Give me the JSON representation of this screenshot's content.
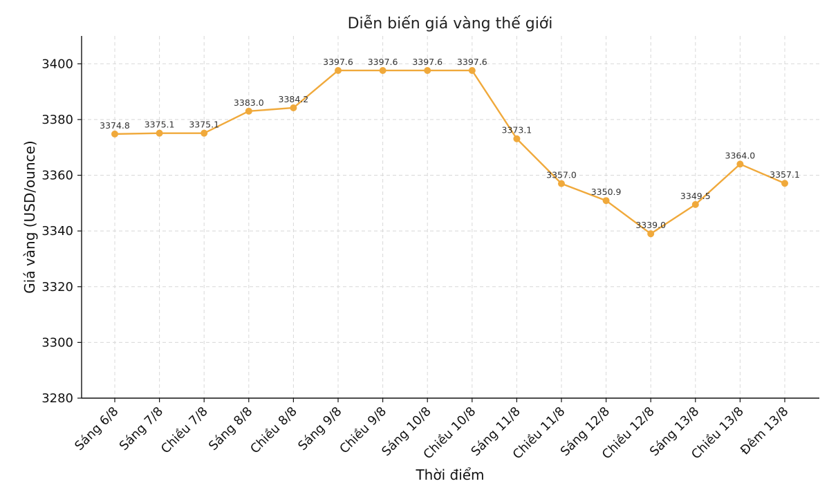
{
  "chart_data": {
    "type": "line",
    "title": "Diễn biến giá vàng thế giới",
    "xlabel": "Thời điểm",
    "ylabel": "Giá vàng (USD/ounce)",
    "categories": [
      "Sáng 6/8",
      "Sáng 7/8",
      "Chiều 7/8",
      "Sáng 8/8",
      "Chiều 8/8",
      "Sáng 9/8",
      "Chiều 9/8",
      "Sáng 10/8",
      "Chiều 10/8",
      "Sáng 11/8",
      "Chiều 11/8",
      "Sáng 12/8",
      "Chiều 12/8",
      "Sáng 13/8",
      "Chiều 13/8",
      "Đêm 13/8"
    ],
    "series": [
      {
        "values": [
          3374.8,
          3375.1,
          3375.1,
          3383.0,
          3384.2,
          3397.6,
          3397.6,
          3397.6,
          3397.6,
          3373.1,
          3357.0,
          3350.9,
          3339.0,
          3349.5,
          3364.0,
          3357.1
        ],
        "color": "#f0a93b"
      }
    ],
    "data_labels": [
      "3374.8",
      "3375.1",
      "3375.1",
      "3383.0",
      "3384.2",
      "3397.6",
      "3397.6",
      "3397.6",
      "3397.6",
      "3373.1",
      "3357.0",
      "3350.9",
      "3339.0",
      "3349.5",
      "3364.0",
      "3357.1"
    ],
    "ylim": [
      3280,
      3410
    ],
    "yticks": [
      3280,
      3300,
      3320,
      3340,
      3360,
      3380,
      3400
    ],
    "grid": true,
    "colors": {
      "line": "#f0a93b",
      "grid": "#d8d8d8",
      "axis": "#111111"
    }
  }
}
